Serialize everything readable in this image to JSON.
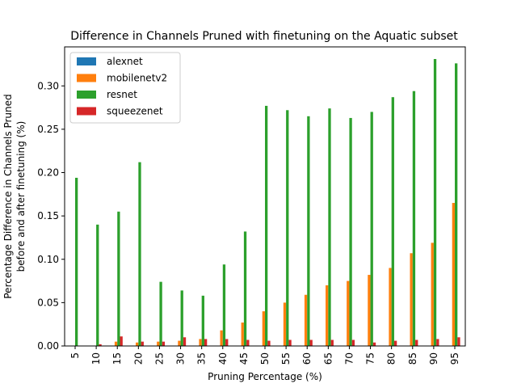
{
  "chart_data": {
    "type": "bar",
    "title": "Difference in Channels Pruned with finetuning on the Aquatic subset",
    "xlabel": "Pruning Percentage (%)",
    "ylabel": [
      "Percentage Difference in Channels Pruned",
      "before and after finetuning (%)"
    ],
    "ylim": [
      0,
      0.345
    ],
    "yticks": [
      0.0,
      0.05,
      0.1,
      0.15,
      0.2,
      0.25,
      0.3
    ],
    "ytick_labels": [
      "0.00",
      "0.05",
      "0.10",
      "0.15",
      "0.20",
      "0.25",
      "0.30"
    ],
    "categories": [
      "5",
      "10",
      "15",
      "20",
      "25",
      "30",
      "35",
      "40",
      "45",
      "50",
      "55",
      "60",
      "65",
      "70",
      "75",
      "80",
      "85",
      "90",
      "95"
    ],
    "legend_position": "upper-left",
    "grid": false,
    "series": [
      {
        "name": "alexnet",
        "color": "#1f77b4",
        "values": [
          0,
          0,
          0,
          0,
          0,
          0,
          0,
          0,
          0,
          0,
          0,
          0,
          0,
          0,
          0,
          0,
          0,
          0,
          0
        ]
      },
      {
        "name": "mobilenetv2",
        "color": "#ff7f0e",
        "values": [
          0,
          0,
          0.005,
          0.004,
          0.005,
          0.006,
          0.008,
          0.018,
          0.027,
          0.04,
          0.05,
          0.059,
          0.07,
          0.075,
          0.082,
          0.09,
          0.107,
          0.119,
          0.165
        ]
      },
      {
        "name": "resnet",
        "color": "#2ca02c",
        "values": [
          0.194,
          0.14,
          0.155,
          0.212,
          0.074,
          0.064,
          0.058,
          0.094,
          0.132,
          0.277,
          0.272,
          0.265,
          0.274,
          0.263,
          0.27,
          0.287,
          0.294,
          0.331,
          0.326
        ]
      },
      {
        "name": "squeezenet",
        "color": "#d62728",
        "values": [
          0,
          0.002,
          0.011,
          0.005,
          0.005,
          0.01,
          0.008,
          0.008,
          0.007,
          0.006,
          0.007,
          0.007,
          0.007,
          0.007,
          0.004,
          0.006,
          0.007,
          0.008,
          0.01
        ]
      }
    ]
  }
}
